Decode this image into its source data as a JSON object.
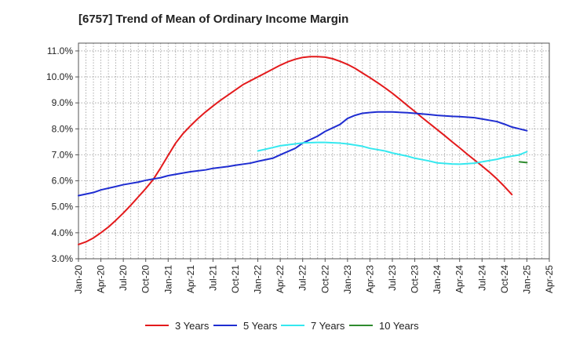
{
  "chart_data": {
    "type": "line",
    "title": "[6757]  Trend of Mean of Ordinary Income Margin",
    "xlabel": "",
    "ylabel": "",
    "x_ticks": [
      "Jan-20",
      "Apr-20",
      "Jul-20",
      "Oct-20",
      "Jan-21",
      "Apr-21",
      "Jul-21",
      "Oct-21",
      "Jan-22",
      "Apr-22",
      "Jul-22",
      "Oct-22",
      "Jan-23",
      "Apr-23",
      "Jul-23",
      "Oct-23",
      "Jan-24",
      "Apr-24",
      "Jul-24",
      "Oct-24",
      "Jan-25",
      "Apr-25"
    ],
    "y_ticks": [
      "3.0%",
      "4.0%",
      "5.0%",
      "6.0%",
      "7.0%",
      "8.0%",
      "9.0%",
      "10.0%",
      "11.0%"
    ],
    "ylim": [
      3.0,
      11.3
    ],
    "grid": true,
    "legend_position": "bottom",
    "series": [
      {
        "name": "3 Years",
        "color": "#e31a1c",
        "points": [
          [
            "Jan-20",
            3.55
          ],
          [
            "Feb-20",
            3.65
          ],
          [
            "Mar-20",
            3.8
          ],
          [
            "Apr-20",
            4.0
          ],
          [
            "May-20",
            4.22
          ],
          [
            "Jun-20",
            4.48
          ],
          [
            "Jul-20",
            4.76
          ],
          [
            "Aug-20",
            5.06
          ],
          [
            "Sep-20",
            5.38
          ],
          [
            "Oct-20",
            5.7
          ],
          [
            "Nov-20",
            6.05
          ],
          [
            "Dec-20",
            6.5
          ],
          [
            "Jan-21",
            6.98
          ],
          [
            "Feb-21",
            7.45
          ],
          [
            "Mar-21",
            7.82
          ],
          [
            "Apr-21",
            8.12
          ],
          [
            "May-21",
            8.4
          ],
          [
            "Jun-21",
            8.65
          ],
          [
            "Jul-21",
            8.88
          ],
          [
            "Aug-21",
            9.1
          ],
          [
            "Sep-21",
            9.3
          ],
          [
            "Oct-21",
            9.5
          ],
          [
            "Nov-21",
            9.7
          ],
          [
            "Dec-21",
            9.85
          ],
          [
            "Jan-22",
            10.0
          ],
          [
            "Feb-22",
            10.15
          ],
          [
            "Mar-22",
            10.3
          ],
          [
            "Apr-22",
            10.45
          ],
          [
            "May-22",
            10.58
          ],
          [
            "Jun-22",
            10.68
          ],
          [
            "Jul-22",
            10.75
          ],
          [
            "Aug-22",
            10.78
          ],
          [
            "Sep-22",
            10.78
          ],
          [
            "Oct-22",
            10.76
          ],
          [
            "Nov-22",
            10.7
          ],
          [
            "Dec-22",
            10.6
          ],
          [
            "Jan-23",
            10.48
          ],
          [
            "Feb-23",
            10.33
          ],
          [
            "Mar-23",
            10.15
          ],
          [
            "Apr-23",
            9.97
          ],
          [
            "May-23",
            9.78
          ],
          [
            "Jun-23",
            9.58
          ],
          [
            "Jul-23",
            9.37
          ],
          [
            "Aug-23",
            9.14
          ],
          [
            "Sep-23",
            8.9
          ],
          [
            "Oct-23",
            8.67
          ],
          [
            "Nov-23",
            8.43
          ],
          [
            "Dec-23",
            8.2
          ],
          [
            "Jan-24",
            7.97
          ],
          [
            "Feb-24",
            7.74
          ],
          [
            "Mar-24",
            7.5
          ],
          [
            "Apr-24",
            7.27
          ],
          [
            "May-24",
            7.03
          ],
          [
            "Jun-24",
            6.8
          ],
          [
            "Jul-24",
            6.57
          ],
          [
            "Aug-24",
            6.33
          ],
          [
            "Sep-24",
            6.07
          ],
          [
            "Oct-24",
            5.78
          ],
          [
            "Nov-24",
            5.47
          ]
        ]
      },
      {
        "name": "5 Years",
        "color": "#1f2dd1",
        "points": [
          [
            "Jan-20",
            5.43
          ],
          [
            "Mar-20",
            5.55
          ],
          [
            "Apr-20",
            5.65
          ],
          [
            "Jun-20",
            5.78
          ],
          [
            "Jul-20",
            5.85
          ],
          [
            "Sep-20",
            5.95
          ],
          [
            "Oct-20",
            6.02
          ],
          [
            "Dec-20",
            6.12
          ],
          [
            "Jan-21",
            6.2
          ],
          [
            "Mar-21",
            6.3
          ],
          [
            "Apr-21",
            6.35
          ],
          [
            "Jun-21",
            6.42
          ],
          [
            "Jul-21",
            6.48
          ],
          [
            "Sep-21",
            6.55
          ],
          [
            "Oct-21",
            6.6
          ],
          [
            "Dec-21",
            6.68
          ],
          [
            "Jan-22",
            6.75
          ],
          [
            "Mar-22",
            6.87
          ],
          [
            "Apr-22",
            7.0
          ],
          [
            "Jun-22",
            7.25
          ],
          [
            "Jul-22",
            7.45
          ],
          [
            "Sep-22",
            7.72
          ],
          [
            "Oct-22",
            7.9
          ],
          [
            "Dec-22",
            8.17
          ],
          [
            "Jan-23",
            8.4
          ],
          [
            "Feb-23",
            8.52
          ],
          [
            "Mar-23",
            8.6
          ],
          [
            "Apr-23",
            8.63
          ],
          [
            "May-23",
            8.65
          ],
          [
            "Jul-23",
            8.65
          ],
          [
            "Sep-23",
            8.62
          ],
          [
            "Oct-23",
            8.6
          ],
          [
            "Dec-23",
            8.55
          ],
          [
            "Jan-24",
            8.52
          ],
          [
            "Mar-24",
            8.48
          ],
          [
            "Apr-24",
            8.47
          ],
          [
            "Jun-24",
            8.43
          ],
          [
            "Jul-24",
            8.38
          ],
          [
            "Sep-24",
            8.28
          ],
          [
            "Oct-24",
            8.18
          ],
          [
            "Nov-24",
            8.07
          ],
          [
            "Jan-25",
            7.93
          ]
        ]
      },
      {
        "name": "7 Years",
        "color": "#35e8ef",
        "points": [
          [
            "Jan-22",
            7.15
          ],
          [
            "Mar-22",
            7.28
          ],
          [
            "Apr-22",
            7.35
          ],
          [
            "Jun-22",
            7.42
          ],
          [
            "Jul-22",
            7.46
          ],
          [
            "Sep-22",
            7.48
          ],
          [
            "Oct-22",
            7.48
          ],
          [
            "Dec-22",
            7.45
          ],
          [
            "Jan-23",
            7.42
          ],
          [
            "Mar-23",
            7.33
          ],
          [
            "Apr-23",
            7.25
          ],
          [
            "Jun-23",
            7.15
          ],
          [
            "Jul-23",
            7.07
          ],
          [
            "Sep-23",
            6.95
          ],
          [
            "Oct-23",
            6.87
          ],
          [
            "Dec-23",
            6.76
          ],
          [
            "Jan-24",
            6.69
          ],
          [
            "Mar-24",
            6.65
          ],
          [
            "Apr-24",
            6.64
          ],
          [
            "Jun-24",
            6.68
          ],
          [
            "Jul-24",
            6.73
          ],
          [
            "Sep-24",
            6.83
          ],
          [
            "Oct-24",
            6.9
          ],
          [
            "Dec-24",
            7.0
          ],
          [
            "Jan-25",
            7.12
          ]
        ]
      },
      {
        "name": "10 Years",
        "color": "#2e8b2e",
        "points": [
          [
            "Dec-24",
            6.73
          ],
          [
            "Jan-25",
            6.7
          ]
        ]
      }
    ]
  }
}
